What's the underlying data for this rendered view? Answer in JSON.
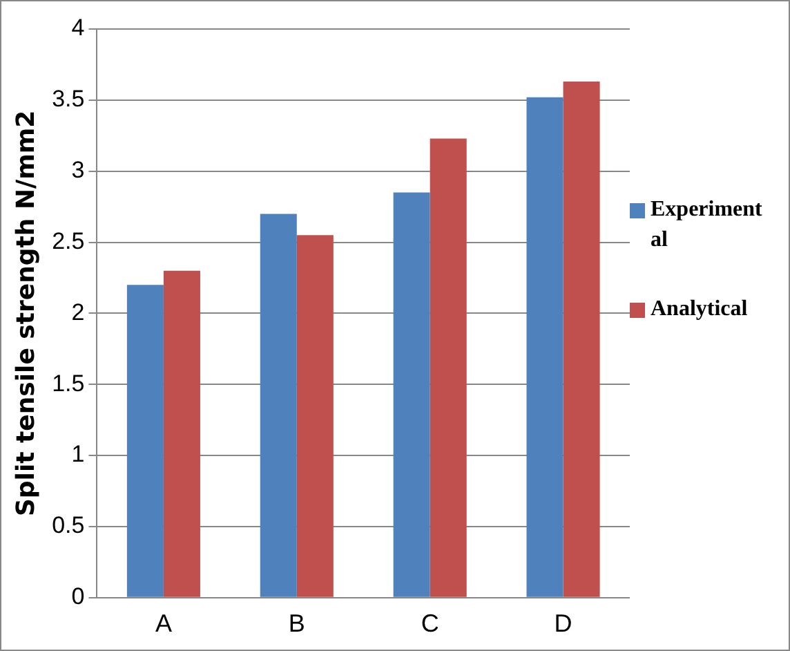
{
  "chart_data": {
    "type": "bar",
    "ylabel": "Split tensile strength N/mm2",
    "categories": [
      "A",
      "B",
      "C",
      "D"
    ],
    "series": [
      {
        "name": "Experimental",
        "color": "#4f81bd",
        "values": [
          2.2,
          2.7,
          2.85,
          3.52
        ]
      },
      {
        "name": "Analytical",
        "color": "#c0504d",
        "values": [
          2.3,
          2.55,
          3.23,
          3.63
        ]
      }
    ],
    "ylim": [
      0,
      4
    ],
    "yticks": [
      0,
      0.5,
      1,
      1.5,
      2,
      2.5,
      3,
      3.5,
      4
    ],
    "grid": "y",
    "legend": "right"
  }
}
